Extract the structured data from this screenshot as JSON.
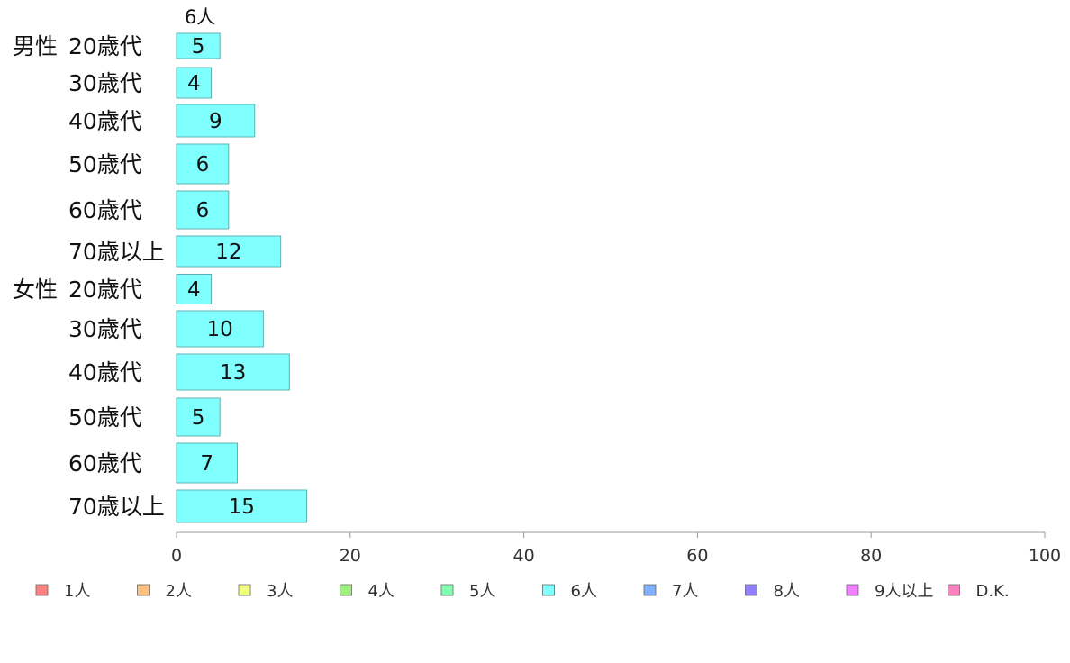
{
  "chart_data": {
    "type": "bar",
    "orientation": "horizontal",
    "series_header": "6人",
    "groups": [
      {
        "label": "男性",
        "categories": [
          "20歳代",
          "30歳代",
          "40歳代",
          "50歳代",
          "60歳代",
          "70歳以上"
        ],
        "values": [
          5,
          4,
          9,
          6,
          6,
          12
        ]
      },
      {
        "label": "女性",
        "categories": [
          "20歳代",
          "30歳代",
          "40歳代",
          "50歳代",
          "60歳代",
          "70歳以上"
        ],
        "values": [
          4,
          10,
          13,
          5,
          7,
          15
        ]
      }
    ],
    "xlim": [
      0,
      100
    ],
    "x_ticks": [
      0,
      20,
      40,
      60,
      80,
      100
    ],
    "bar_color": "#80ffff",
    "bar_stroke": "#5fb0b0",
    "legend": {
      "position": "bottom",
      "entries": [
        {
          "label": "1人",
          "color": "#ff8080"
        },
        {
          "label": "2人",
          "color": "#ffc080"
        },
        {
          "label": "3人",
          "color": "#f0ff80"
        },
        {
          "label": "4人",
          "color": "#a0f080"
        },
        {
          "label": "5人",
          "color": "#80ffb0"
        },
        {
          "label": "6人",
          "color": "#80ffff"
        },
        {
          "label": "7人",
          "color": "#80b0ff"
        },
        {
          "label": "8人",
          "color": "#9080ff"
        },
        {
          "label": "9人以上",
          "color": "#f080ff"
        },
        {
          "label": "D.K.",
          "color": "#ff80c0"
        }
      ]
    }
  }
}
